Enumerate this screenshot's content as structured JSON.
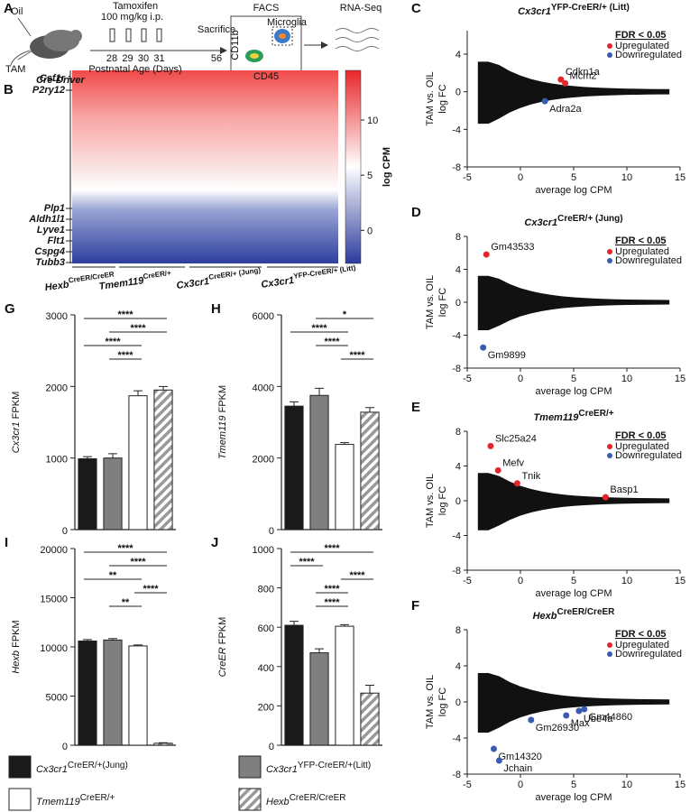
{
  "schematic": {
    "label": "A",
    "oil": "Oil",
    "tam": "TAM",
    "tamoxifen": "Tamoxifen",
    "dose": "100 mg/kg i.p.",
    "days": [
      "28",
      "29",
      "30",
      "31"
    ],
    "sacrifice": "Sacrifice",
    "sacrifice_day": "56",
    "age": "Postnatal Age (Days)",
    "driver": "Cre-Driver",
    "facs": "FACS",
    "microglia": "Microglia",
    "cd11b": "CD11b",
    "cd45": "CD45",
    "rnaseq": "RNA-Seq"
  },
  "heatmap": {
    "label": "B",
    "genes_top": [
      "Csf1r",
      "P2ry12"
    ],
    "genes_bottom": [
      "Plp1",
      "Aldh1l1",
      "Lyve1",
      "Flt1",
      "Cspg4",
      "Tubb3"
    ],
    "groups": [
      {
        "name": "Hexb",
        "sup": "CreER/CreER"
      },
      {
        "name": "Tmem119",
        "sup": "CreER/+"
      },
      {
        "name": "Cx3cr1",
        "sup": "CreER/+ (Jung)"
      },
      {
        "name": "Cx3cr1",
        "sup": "YFP-CreER/+ (Litt)"
      }
    ],
    "colorbar": {
      "title": "log CPM",
      "lim": [
        -3,
        14.5
      ],
      "ticks": [
        10,
        5,
        0
      ],
      "colors": [
        "#2b3a9c",
        "#ffffff",
        "#e8262a"
      ]
    }
  },
  "groups": [
    {
      "name": "Cx3cr1",
      "sup": "CreER/+(Jung)",
      "color": "#1a1a1a",
      "hatch": false
    },
    {
      "name": "Cx3cr1",
      "sup": "YFP-CreER/+(Litt)",
      "color": "#7f7f7f",
      "hatch": false
    },
    {
      "name": "Tmem119",
      "sup": "CreER/+",
      "color": "#ffffff",
      "hatch": false
    },
    {
      "name": "Hexb",
      "sup": "CreER/CreER",
      "color": "#ffffff",
      "hatch": true
    }
  ],
  "chart_data": [
    {
      "type": "scatter",
      "label": "C",
      "title": "Cx3cr1",
      "title_sup": "YFP-CreER/+ (Litt)",
      "xlabel": "average log CPM",
      "ylabel": [
        "TAM vs. OIL",
        "log FC"
      ],
      "xlim": [
        -5,
        15
      ],
      "xticks": [
        -5,
        0,
        5,
        10,
        15
      ],
      "ylim": [
        -8,
        6.5
      ],
      "yticks": [
        -8,
        -4,
        0,
        4
      ],
      "legend_title": "FDR < 0.05",
      "series": [
        {
          "name": "Upregulated",
          "color": "#e3262c",
          "x": [
            3.8,
            4.2
          ],
          "values": [
            1.3,
            0.9
          ],
          "labels": [
            "Cdkn1a",
            "Mcm2"
          ]
        },
        {
          "name": "Downregulated",
          "color": "#3a5bb0",
          "x": [
            2.3
          ],
          "values": [
            -1.0
          ],
          "labels": [
            "Adra2a"
          ]
        }
      ]
    },
    {
      "type": "scatter",
      "label": "D",
      "title": "Cx3cr1",
      "title_sup": "CreER/+ (Jung)",
      "xlabel": "average log CPM",
      "ylabel": [
        "TAM vs. OIL",
        "log FC"
      ],
      "xlim": [
        -5,
        15
      ],
      "xticks": [
        -5,
        0,
        5,
        10,
        15
      ],
      "ylim": [
        -8,
        8
      ],
      "yticks": [
        -8,
        -4,
        0,
        4,
        8
      ],
      "legend_title": "FDR < 0.05",
      "series": [
        {
          "name": "Upregulated",
          "color": "#e3262c",
          "x": [
            -3.2
          ],
          "values": [
            5.8
          ],
          "labels": [
            "Gm43533"
          ]
        },
        {
          "name": "Downregulated",
          "color": "#3a5bb0",
          "x": [
            -3.5
          ],
          "values": [
            -5.5
          ],
          "labels": [
            "Gm9899"
          ]
        }
      ]
    },
    {
      "type": "scatter",
      "label": "E",
      "title": "Tmem119",
      "title_sup": "CreER/+",
      "xlabel": "average log CPM",
      "ylabel": [
        "TAM vs. OIL",
        "log FC"
      ],
      "xlim": [
        -5,
        15
      ],
      "xticks": [
        -5,
        0,
        5,
        10,
        15
      ],
      "ylim": [
        -8,
        8
      ],
      "yticks": [
        -8,
        -4,
        0,
        4,
        8
      ],
      "legend_title": "FDR < 0.05",
      "series": [
        {
          "name": "Upregulated",
          "color": "#e3262c",
          "x": [
            -2.8,
            -2.1,
            -0.3,
            8
          ],
          "values": [
            6.3,
            3.5,
            2.0,
            0.4
          ],
          "labels": [
            "Slc25a24",
            "Mefv",
            "Tnik",
            "Basp1"
          ]
        },
        {
          "name": "Downregulated",
          "color": "#3a5bb0",
          "x": [],
          "values": [],
          "labels": []
        }
      ]
    },
    {
      "type": "scatter",
      "label": "F",
      "title": "Hexb",
      "title_sup": "CreER/CreER",
      "xlabel": "average log CPM",
      "ylabel": [
        "TAM vs. OIL",
        "log FC"
      ],
      "xlim": [
        -5,
        15
      ],
      "xticks": [
        -5,
        0,
        5,
        10,
        15
      ],
      "ylim": [
        -8,
        8
      ],
      "yticks": [
        -8,
        -4,
        0,
        4,
        8
      ],
      "legend_title": "FDR < 0.05",
      "series": [
        {
          "name": "Upregulated",
          "color": "#e3262c",
          "x": [],
          "values": [],
          "labels": []
        },
        {
          "name": "Downregulated",
          "color": "#3a5bb0",
          "x": [
            -2.5,
            -2,
            1,
            4.3,
            5.5,
            6
          ],
          "values": [
            -5.2,
            -6.5,
            -2,
            -1.5,
            -1,
            -0.8
          ],
          "labels": [
            "Gm14320",
            "Jchain",
            "Gm26930",
            "Max",
            "Ube4a",
            "Gm44860"
          ]
        }
      ]
    },
    {
      "type": "bar",
      "label": "G",
      "ylabel_gene": "Cx3cr1",
      "ylabel": "FPKM",
      "ylim": [
        0,
        3000
      ],
      "yticks": [
        0,
        1000,
        2000,
        3000
      ],
      "values": [
        990,
        1000,
        1870,
        1950
      ],
      "errors": [
        30,
        60,
        70,
        50
      ],
      "brackets": [
        {
          "from": 0,
          "to": 3,
          "label": "****"
        },
        {
          "from": 1,
          "to": 3,
          "label": "****"
        },
        {
          "from": 0,
          "to": 2,
          "label": "****"
        },
        {
          "from": 1,
          "to": 2,
          "label": "****"
        }
      ]
    },
    {
      "type": "bar",
      "label": "H",
      "ylabel_gene": "Tmem119",
      "ylabel": "FPKM",
      "ylim": [
        0,
        6000
      ],
      "yticks": [
        0,
        2000,
        4000,
        6000
      ],
      "values": [
        3450,
        3750,
        2380,
        3280
      ],
      "errors": [
        120,
        200,
        50,
        130
      ],
      "brackets": [
        {
          "from": 1,
          "to": 3,
          "label": "*"
        },
        {
          "from": 0,
          "to": 2,
          "label": "****"
        },
        {
          "from": 1,
          "to": 2,
          "label": "****"
        },
        {
          "from": 2,
          "to": 3,
          "label": "****"
        }
      ]
    },
    {
      "type": "bar",
      "label": "I",
      "ylabel_gene": "Hexb",
      "ylabel": "FPKM",
      "ylim": [
        0,
        20000
      ],
      "yticks": [
        0,
        5000,
        10000,
        15000,
        20000
      ],
      "values": [
        10600,
        10700,
        10100,
        200
      ],
      "errors": [
        150,
        150,
        100,
        50
      ],
      "brackets": [
        {
          "from": 0,
          "to": 3,
          "label": "****"
        },
        {
          "from": 1,
          "to": 3,
          "label": "****"
        },
        {
          "from": 0,
          "to": 2,
          "label": "**"
        },
        {
          "from": 2,
          "to": 3,
          "label": "****"
        },
        {
          "from": 1,
          "to": 2,
          "label": "**"
        }
      ]
    },
    {
      "type": "bar",
      "label": "J",
      "ylabel_gene": "CreER",
      "ylabel": "FPKM",
      "ylim": [
        0,
        1000
      ],
      "yticks": [
        0,
        200,
        400,
        600,
        800,
        1000
      ],
      "values": [
        610,
        470,
        605,
        265
      ],
      "errors": [
        20,
        20,
        8,
        40
      ],
      "brackets": [
        {
          "from": 0,
          "to": 3,
          "label": "****"
        },
        {
          "from": 0,
          "to": 1,
          "label": "****"
        },
        {
          "from": 2,
          "to": 3,
          "label": "****"
        },
        {
          "from": 1,
          "to": 2,
          "label": "****"
        },
        {
          "from": 1,
          "to": 2,
          "label": "****"
        }
      ]
    }
  ]
}
